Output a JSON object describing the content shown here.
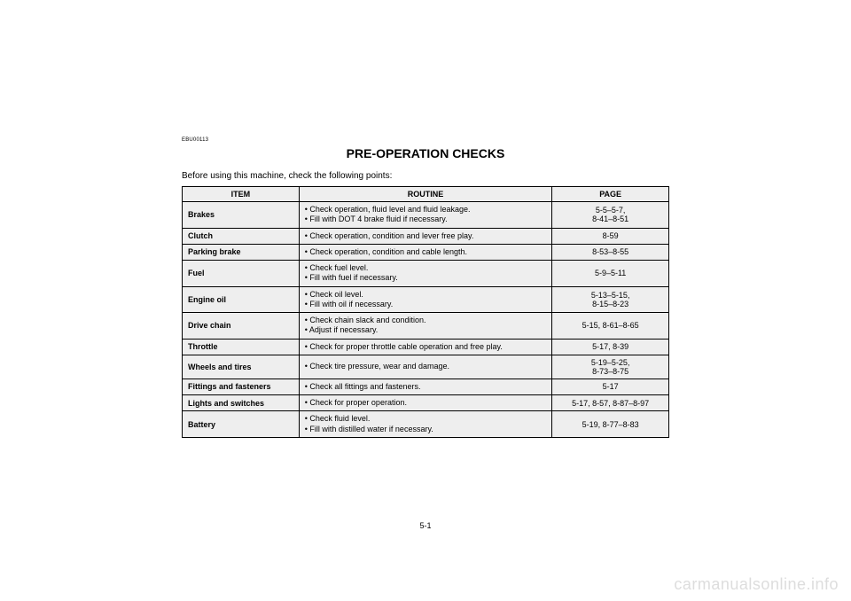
{
  "doc_code": "EBU00113",
  "title": "PRE-OPERATION CHECKS",
  "intro": "Before using this machine, check the following points:",
  "table": {
    "headers": {
      "item": "ITEM",
      "routine": "ROUTINE",
      "page": "PAGE"
    },
    "rows": [
      {
        "item": "Brakes",
        "routine1": "• Check operation, fluid level and fluid leakage.",
        "routine2": "• Fill with DOT 4 brake fluid if necessary.",
        "page": "5-5–5-7,\n8-41–8-51"
      },
      {
        "item": "Clutch",
        "routine1": "• Check operation, condition and lever free play.",
        "page": "8-59"
      },
      {
        "item": "Parking brake",
        "routine1": "• Check operation, condition and cable length.",
        "page": "8-53–8-55"
      },
      {
        "item": "Fuel",
        "routine1": "• Check fuel level.",
        "routine2": "• Fill with fuel if necessary.",
        "page": "5-9–5-11"
      },
      {
        "item": "Engine oil",
        "routine1": "• Check oil level.",
        "routine2": "• Fill with oil if necessary.",
        "page": "5-13–5-15,\n8-15–8-23"
      },
      {
        "item": "Drive chain",
        "routine1": "• Check chain slack and condition.",
        "routine2": "• Adjust if necessary.",
        "page": "5-15, 8-61–8-65"
      },
      {
        "item": "Throttle",
        "routine1": "• Check for proper throttle cable operation and free play.",
        "page": "5-17, 8-39"
      },
      {
        "item": "Wheels and tires",
        "routine1": "• Check tire pressure, wear and damage.",
        "page": "5-19–5-25,\n8-73–8-75"
      },
      {
        "item": "Fittings and fasteners",
        "routine1": "• Check all fittings and fasteners.",
        "page": "5-17"
      },
      {
        "item": "Lights and switches",
        "routine1": "• Check for proper operation.",
        "page": "5-17, 8-57, 8-87–8-97"
      },
      {
        "item": "Battery",
        "routine1": "• Check fluid level.",
        "routine2": "• Fill with distilled water if necessary.",
        "page": "5-19, 8-77–8-83"
      }
    ]
  },
  "page_number": "5-1",
  "watermark": "carmanualsonline.info",
  "colors": {
    "background": "#ffffff",
    "text": "#000000",
    "cell_bg": "#eeeeee",
    "border": "#000000",
    "watermark": "#dddddd"
  }
}
